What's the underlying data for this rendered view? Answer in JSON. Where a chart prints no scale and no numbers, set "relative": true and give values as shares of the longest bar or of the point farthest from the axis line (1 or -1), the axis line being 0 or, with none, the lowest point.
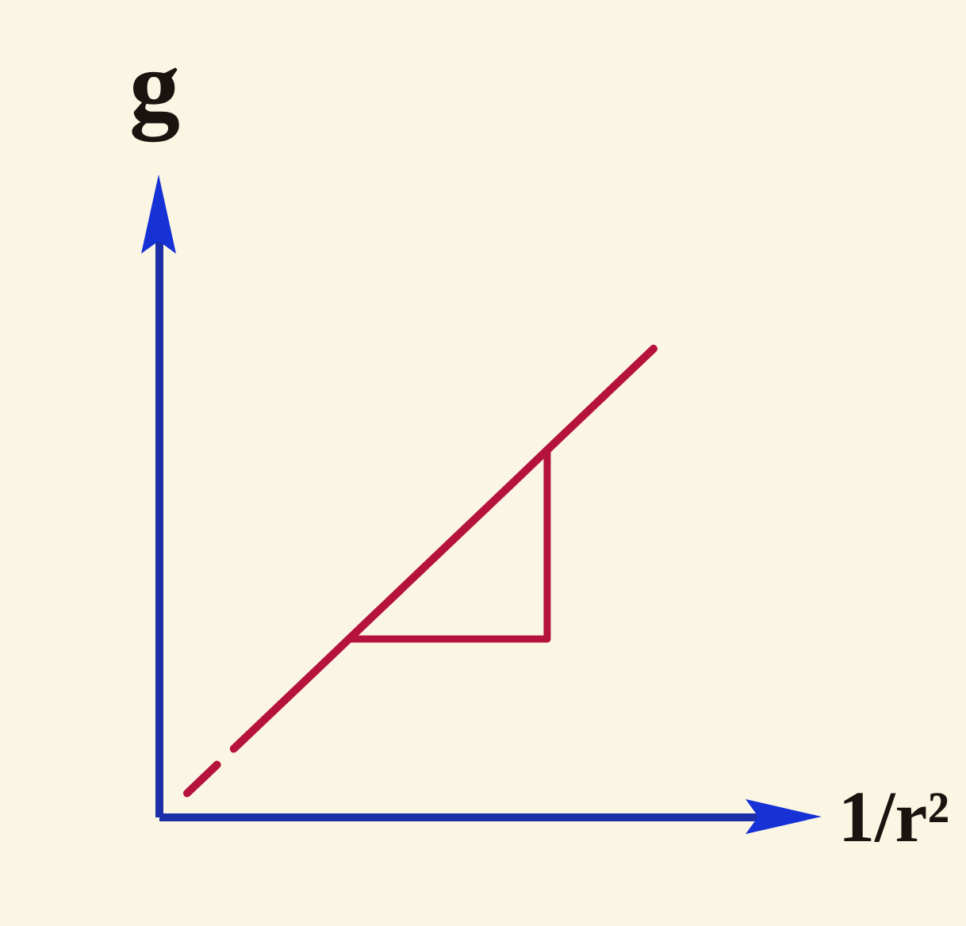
{
  "chart_data": {
    "type": "line",
    "xlabel": "1/r²",
    "ylabel": "g",
    "relative": true,
    "categories": [
      null,
      null,
      null,
      null,
      null,
      null,
      null,
      null,
      null,
      null,
      null
    ],
    "series": [
      {
        "color": "#b5123c",
        "line_style": "dashed",
        "values": [
          0.05,
          0.145,
          null,
          null,
          null,
          null,
          null,
          null,
          null,
          null,
          null
        ]
      },
      {
        "color": "#b5123c",
        "line_style": "solid",
        "values": [
          null,
          0.145,
          0.24,
          0.335,
          0.43,
          0.525,
          0.62,
          0.715,
          0.81,
          0.905,
          1
        ]
      }
    ]
  }
}
